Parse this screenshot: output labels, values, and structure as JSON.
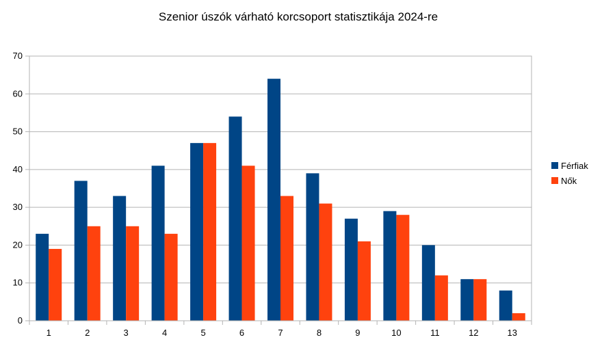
{
  "chart_data": {
    "type": "bar",
    "title": "Szenior úszók várható korcsoport statisztikája 2024-re",
    "xlabel": "",
    "ylabel": "",
    "categories": [
      "1",
      "2",
      "3",
      "4",
      "5",
      "6",
      "7",
      "8",
      "9",
      "10",
      "11",
      "12",
      "13"
    ],
    "series": [
      {
        "name": "Férfiak",
        "color": "#004586",
        "values": [
          23,
          37,
          33,
          41,
          47,
          54,
          64,
          39,
          27,
          29,
          20,
          11,
          8
        ]
      },
      {
        "name": "Nők",
        "color": "#ff420e",
        "values": [
          19,
          25,
          25,
          23,
          47,
          41,
          33,
          31,
          21,
          28,
          12,
          11,
          2
        ]
      }
    ],
    "ylim": [
      0,
      70
    ],
    "yticks": [
      0,
      10,
      20,
      30,
      40,
      50,
      60,
      70
    ],
    "grid": true,
    "legend": "right"
  }
}
